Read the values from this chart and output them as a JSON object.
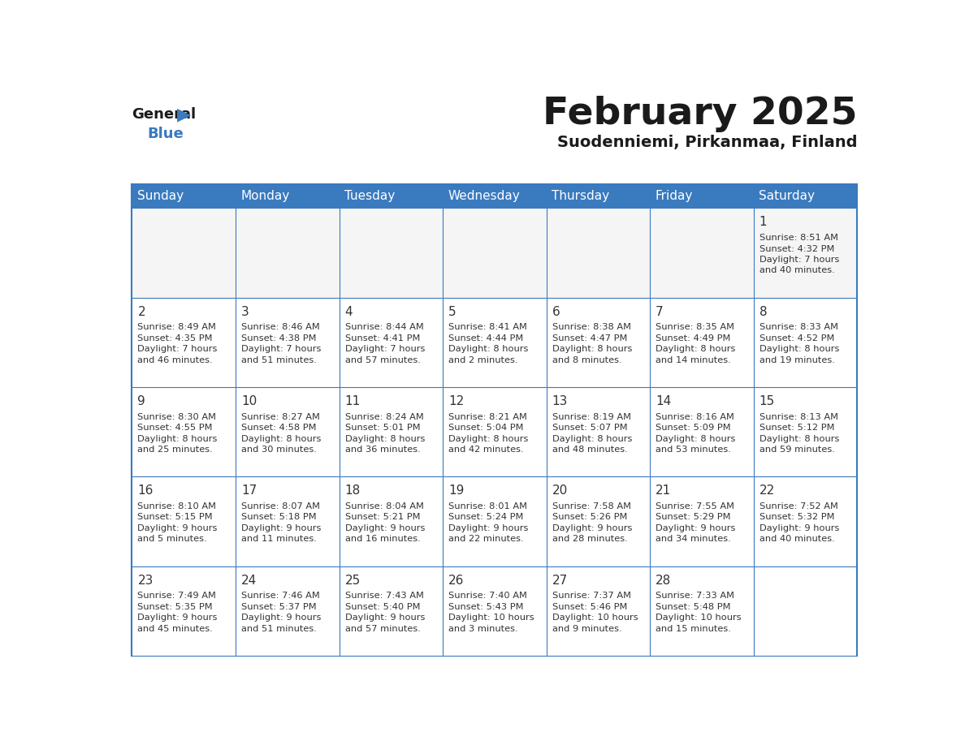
{
  "title": "February 2025",
  "subtitle": "Suodenniemi, Pirkanmaa, Finland",
  "header_bg_color": "#3a7abf",
  "header_text_color": "#ffffff",
  "cell_bg_even": "#f5f5f5",
  "cell_bg_odd": "#ffffff",
  "border_color": "#3a7abf",
  "day_headers": [
    "Sunday",
    "Monday",
    "Tuesday",
    "Wednesday",
    "Thursday",
    "Friday",
    "Saturday"
  ],
  "title_color": "#1a1a1a",
  "subtitle_color": "#1a1a1a",
  "text_color": "#333333",
  "days": [
    {
      "day": 1,
      "col": 6,
      "row": 0,
      "sunrise": "8:51 AM",
      "sunset": "4:32 PM",
      "daylight_h": "7 hours",
      "daylight_m": "and 40 minutes."
    },
    {
      "day": 2,
      "col": 0,
      "row": 1,
      "sunrise": "8:49 AM",
      "sunset": "4:35 PM",
      "daylight_h": "7 hours",
      "daylight_m": "and 46 minutes."
    },
    {
      "day": 3,
      "col": 1,
      "row": 1,
      "sunrise": "8:46 AM",
      "sunset": "4:38 PM",
      "daylight_h": "7 hours",
      "daylight_m": "and 51 minutes."
    },
    {
      "day": 4,
      "col": 2,
      "row": 1,
      "sunrise": "8:44 AM",
      "sunset": "4:41 PM",
      "daylight_h": "7 hours",
      "daylight_m": "and 57 minutes."
    },
    {
      "day": 5,
      "col": 3,
      "row": 1,
      "sunrise": "8:41 AM",
      "sunset": "4:44 PM",
      "daylight_h": "8 hours",
      "daylight_m": "and 2 minutes."
    },
    {
      "day": 6,
      "col": 4,
      "row": 1,
      "sunrise": "8:38 AM",
      "sunset": "4:47 PM",
      "daylight_h": "8 hours",
      "daylight_m": "and 8 minutes."
    },
    {
      "day": 7,
      "col": 5,
      "row": 1,
      "sunrise": "8:35 AM",
      "sunset": "4:49 PM",
      "daylight_h": "8 hours",
      "daylight_m": "and 14 minutes."
    },
    {
      "day": 8,
      "col": 6,
      "row": 1,
      "sunrise": "8:33 AM",
      "sunset": "4:52 PM",
      "daylight_h": "8 hours",
      "daylight_m": "and 19 minutes."
    },
    {
      "day": 9,
      "col": 0,
      "row": 2,
      "sunrise": "8:30 AM",
      "sunset": "4:55 PM",
      "daylight_h": "8 hours",
      "daylight_m": "and 25 minutes."
    },
    {
      "day": 10,
      "col": 1,
      "row": 2,
      "sunrise": "8:27 AM",
      "sunset": "4:58 PM",
      "daylight_h": "8 hours",
      "daylight_m": "and 30 minutes."
    },
    {
      "day": 11,
      "col": 2,
      "row": 2,
      "sunrise": "8:24 AM",
      "sunset": "5:01 PM",
      "daylight_h": "8 hours",
      "daylight_m": "and 36 minutes."
    },
    {
      "day": 12,
      "col": 3,
      "row": 2,
      "sunrise": "8:21 AM",
      "sunset": "5:04 PM",
      "daylight_h": "8 hours",
      "daylight_m": "and 42 minutes."
    },
    {
      "day": 13,
      "col": 4,
      "row": 2,
      "sunrise": "8:19 AM",
      "sunset": "5:07 PM",
      "daylight_h": "8 hours",
      "daylight_m": "and 48 minutes."
    },
    {
      "day": 14,
      "col": 5,
      "row": 2,
      "sunrise": "8:16 AM",
      "sunset": "5:09 PM",
      "daylight_h": "8 hours",
      "daylight_m": "and 53 minutes."
    },
    {
      "day": 15,
      "col": 6,
      "row": 2,
      "sunrise": "8:13 AM",
      "sunset": "5:12 PM",
      "daylight_h": "8 hours",
      "daylight_m": "and 59 minutes."
    },
    {
      "day": 16,
      "col": 0,
      "row": 3,
      "sunrise": "8:10 AM",
      "sunset": "5:15 PM",
      "daylight_h": "9 hours",
      "daylight_m": "and 5 minutes."
    },
    {
      "day": 17,
      "col": 1,
      "row": 3,
      "sunrise": "8:07 AM",
      "sunset": "5:18 PM",
      "daylight_h": "9 hours",
      "daylight_m": "and 11 minutes."
    },
    {
      "day": 18,
      "col": 2,
      "row": 3,
      "sunrise": "8:04 AM",
      "sunset": "5:21 PM",
      "daylight_h": "9 hours",
      "daylight_m": "and 16 minutes."
    },
    {
      "day": 19,
      "col": 3,
      "row": 3,
      "sunrise": "8:01 AM",
      "sunset": "5:24 PM",
      "daylight_h": "9 hours",
      "daylight_m": "and 22 minutes."
    },
    {
      "day": 20,
      "col": 4,
      "row": 3,
      "sunrise": "7:58 AM",
      "sunset": "5:26 PM",
      "daylight_h": "9 hours",
      "daylight_m": "and 28 minutes."
    },
    {
      "day": 21,
      "col": 5,
      "row": 3,
      "sunrise": "7:55 AM",
      "sunset": "5:29 PM",
      "daylight_h": "9 hours",
      "daylight_m": "and 34 minutes."
    },
    {
      "day": 22,
      "col": 6,
      "row": 3,
      "sunrise": "7:52 AM",
      "sunset": "5:32 PM",
      "daylight_h": "9 hours",
      "daylight_m": "and 40 minutes."
    },
    {
      "day": 23,
      "col": 0,
      "row": 4,
      "sunrise": "7:49 AM",
      "sunset": "5:35 PM",
      "daylight_h": "9 hours",
      "daylight_m": "and 45 minutes."
    },
    {
      "day": 24,
      "col": 1,
      "row": 4,
      "sunrise": "7:46 AM",
      "sunset": "5:37 PM",
      "daylight_h": "9 hours",
      "daylight_m": "and 51 minutes."
    },
    {
      "day": 25,
      "col": 2,
      "row": 4,
      "sunrise": "7:43 AM",
      "sunset": "5:40 PM",
      "daylight_h": "9 hours",
      "daylight_m": "and 57 minutes."
    },
    {
      "day": 26,
      "col": 3,
      "row": 4,
      "sunrise": "7:40 AM",
      "sunset": "5:43 PM",
      "daylight_h": "10 hours",
      "daylight_m": "and 3 minutes."
    },
    {
      "day": 27,
      "col": 4,
      "row": 4,
      "sunrise": "7:37 AM",
      "sunset": "5:46 PM",
      "daylight_h": "10 hours",
      "daylight_m": "and 9 minutes."
    },
    {
      "day": 28,
      "col": 5,
      "row": 4,
      "sunrise": "7:33 AM",
      "sunset": "5:48 PM",
      "daylight_h": "10 hours",
      "daylight_m": "and 15 minutes."
    }
  ]
}
